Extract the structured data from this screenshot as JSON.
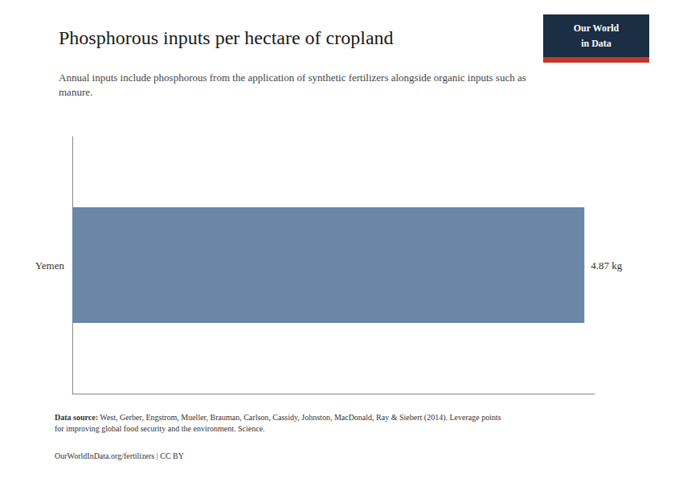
{
  "chart_data": {
    "type": "bar",
    "orientation": "horizontal",
    "title": "Phosphorous inputs per hectare of cropland",
    "subtitle": "Annual inputs include phosphorous from the application of synthetic fertilizers alongside organic inputs such as\nmanure.",
    "categories": [
      "Yemen"
    ],
    "values": [
      4.87
    ],
    "value_labels": [
      "4.87 kg"
    ],
    "data_labels": true,
    "color": "#6b87a8",
    "xlim": [
      0,
      4.9674
    ],
    "tick_labels": "y",
    "grid": false,
    "source_label": "Data source:",
    "source": "West, Gerber, Engstrom, Mueller, Brauman, Carlson, Cassidy, Johnston, MacDonald, Ray & Siebert (2014). Leverage points\nfor improving global food security and the environment. Science.",
    "license": "OurWorldInData.org/fertilizers | CC BY",
    "logo": {
      "lines": [
        "Our World",
        "in Data"
      ],
      "colors": [
        "#1a2e44",
        "#c0392b"
      ]
    }
  }
}
